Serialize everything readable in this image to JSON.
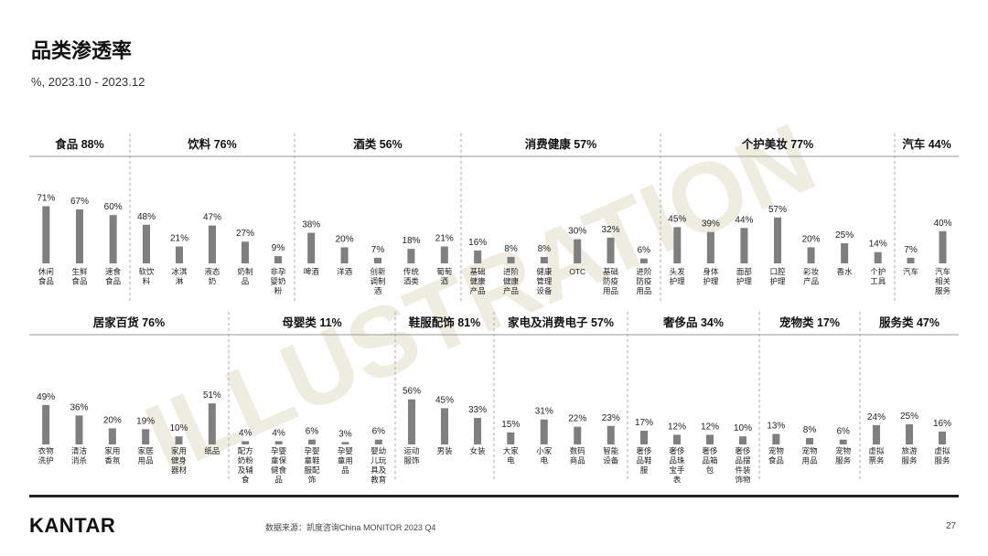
{
  "header": {
    "title": "品类渗透率",
    "subtitle": "%, 2023.10 - 2023.12"
  },
  "footer": {
    "logo": "KANTAR",
    "source": "数据来源：凯度咨询China MONITOR 2023 Q4",
    "page": "27"
  },
  "watermark": "ILLUSTRATION",
  "colors": {
    "bar": "#7f7f7f",
    "text": "#222222",
    "watermark": "#e9e7d6"
  },
  "chart_data": {
    "type": "bar",
    "unit": "%",
    "ylim": [
      0,
      100
    ],
    "rows": [
      {
        "groups": [
          {
            "title": "食品 88%",
            "items": [
              {
                "label": "休闲食品",
                "value": 71
              },
              {
                "label": "生鲜食品",
                "value": 67
              },
              {
                "label": "速食食品",
                "value": 60
              }
            ]
          },
          {
            "title": "饮料 76%",
            "items": [
              {
                "label": "软饮料",
                "value": 48
              },
              {
                "label": "冰淇淋",
                "value": 21
              },
              {
                "label": "液态奶",
                "value": 47
              },
              {
                "label": "奶制品",
                "value": 27
              },
              {
                "label": "非孕婴奶粉",
                "value": 9
              }
            ]
          },
          {
            "title": "酒类 56%",
            "items": [
              {
                "label": "啤酒",
                "value": 38
              },
              {
                "label": "洋酒",
                "value": 20
              },
              {
                "label": "创新调制酒",
                "value": 7
              },
              {
                "label": "传统酒类",
                "value": 18
              },
              {
                "label": "葡萄酒",
                "value": 21
              }
            ]
          },
          {
            "title": "消费健康 57%",
            "items": [
              {
                "label": "基础健康产品",
                "value": 16
              },
              {
                "label": "进阶健康产品",
                "value": 8
              },
              {
                "label": "健康管理设备",
                "value": 8
              },
              {
                "label": "OTC",
                "value": 30
              },
              {
                "label": "基础防疫用品",
                "value": 32
              },
              {
                "label": "进阶防疫用品",
                "value": 6
              }
            ]
          },
          {
            "title": "个护美妆 77%",
            "items": [
              {
                "label": "头发护理",
                "value": 45
              },
              {
                "label": "身体护理",
                "value": 39
              },
              {
                "label": "面部护理",
                "value": 44
              },
              {
                "label": "口腔护理",
                "value": 57
              },
              {
                "label": "彩妆产品",
                "value": 20
              },
              {
                "label": "香水",
                "value": 25
              },
              {
                "label": "个护工具",
                "value": 14
              }
            ]
          },
          {
            "title": "汽车 44%",
            "items": [
              {
                "label": "汽车",
                "value": 7
              },
              {
                "label": "汽车相关服务",
                "value": 40
              }
            ]
          }
        ]
      },
      {
        "groups": [
          {
            "title": "居家百货 76%",
            "items": [
              {
                "label": "衣物洗护",
                "value": 49
              },
              {
                "label": "清洁消杀",
                "value": 36
              },
              {
                "label": "家用香氛",
                "value": 20
              },
              {
                "label": "家居用品",
                "value": 19
              },
              {
                "label": "家用健身器材",
                "value": 10
              },
              {
                "label": "纸品",
                "value": 51
              }
            ]
          },
          {
            "title": "母婴类 11%",
            "items": [
              {
                "label": "配方奶粉及辅食",
                "value": 4
              },
              {
                "label": "孕婴童保健食品",
                "value": 4
              },
              {
                "label": "孕婴童鞋服配饰",
                "value": 6
              },
              {
                "label": "孕婴童用品",
                "value": 3
              },
              {
                "label": "婴幼儿玩具及教育",
                "value": 6
              }
            ]
          },
          {
            "title": "鞋服配饰 81%",
            "items": [
              {
                "label": "运动服饰",
                "value": 56
              },
              {
                "label": "男装",
                "value": 45
              },
              {
                "label": "女装",
                "value": 33
              }
            ]
          },
          {
            "title": "家电及消费电子 57%",
            "items": [
              {
                "label": "大家电",
                "value": 15
              },
              {
                "label": "小家电",
                "value": 31
              },
              {
                "label": "数码商品",
                "value": 22
              },
              {
                "label": "智能设备",
                "value": 23
              }
            ]
          },
          {
            "title": "奢侈品 34%",
            "items": [
              {
                "label": "奢侈品鞋服",
                "value": 17
              },
              {
                "label": "奢侈品珠宝手表",
                "value": 12
              },
              {
                "label": "奢侈品箱包",
                "value": 12
              },
              {
                "label": "奢侈品摆件装饰物",
                "value": 10
              }
            ]
          },
          {
            "title": "宠物类 17%",
            "items": [
              {
                "label": "宠物食品",
                "value": 13
              },
              {
                "label": "宠物用品",
                "value": 8
              },
              {
                "label": "宠物服务",
                "value": 6
              }
            ]
          },
          {
            "title": "服务类 47%",
            "items": [
              {
                "label": "虚拟票务",
                "value": 24
              },
              {
                "label": "旅游服务",
                "value": 25
              },
              {
                "label": "虚拟服务",
                "value": 16
              }
            ]
          }
        ]
      }
    ]
  }
}
